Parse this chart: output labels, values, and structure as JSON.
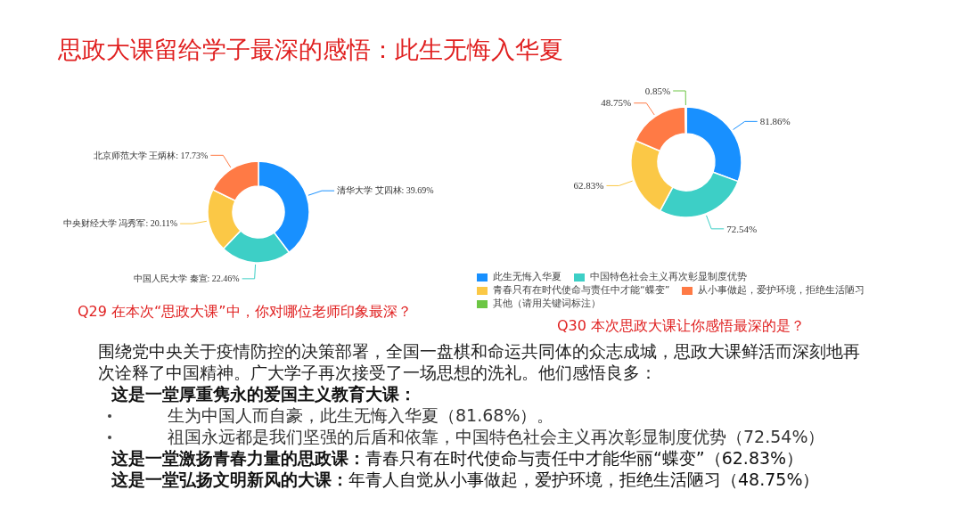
{
  "chart_data": [
    {
      "type": "other",
      "title": "思政大课留给学子最深的感悟：此生无悔入华夏"
    },
    {
      "type": "donut",
      "categories": [
        "清华大学 艾四林",
        "中国人民大学 秦宣",
        "中央财经大学 冯秀军",
        "北京师范大学 王炳林"
      ],
      "values": [
        39.69,
        22.46,
        20.11,
        17.73
      ],
      "value_labels": [
        "39.69%",
        "22.46%",
        "20.11%",
        "17.73%"
      ],
      "colors": [
        "#1890ff",
        "#3dcfc6",
        "#fbc846",
        "#ff7a45"
      ],
      "annotations": [
        "Q29 在本次“思政大课”中，你对哪位老师印象最深？"
      ]
    },
    {
      "type": "donut",
      "categories": [
        "此生无悔入华夏",
        "中国特色社会主义再次彰显制度优势",
        "青春只有在时代使命与责任中才能“蝶变”",
        "从小事做起，爱护环境，拒绝生活陋习",
        "其他（请用关键词标注）"
      ],
      "values": [
        81.86,
        72.54,
        62.83,
        48.75,
        0.85
      ],
      "value_labels": [
        "81.86%",
        "72.54%",
        "62.83%",
        "48.75%",
        "0.85%"
      ],
      "colors": [
        "#1890ff",
        "#3dcfc6",
        "#fbc846",
        "#ff7a45",
        "#6cc644"
      ],
      "legend": "bottom",
      "annotations": [
        "Q30 本次思政大课让你感悟最深的是？"
      ]
    },
    {
      "type": "other",
      "annotations": [
        "围绕党中央关于疫情防控的决策部署，全国一盘棋和命运共同体的众志成城，思政大课鲜活而深刻地再次诠释了中国精神。广大学子再次接受了一场思想的洗礼。他们感悟良多：",
        "这是一堂厚重隽永的爱国主义教育大课：",
        "生为中国人而自豪，此生无悔入华夏（81.68%）。",
        "祖国永远都是我们坚强的后盾和依靠，中国特色社会主义再次彰显制度优势（72.54%）",
        "这是一堂激扬青春力量的思政课：青春只有在时代使命与责任中才能华丽“蝶变”（62.83%）",
        "这是一堂弘扬文明新风的大课：年青人自觉从小事做起，爱护环境，拒绝生活陋习（48.75%）"
      ]
    }
  ]
}
